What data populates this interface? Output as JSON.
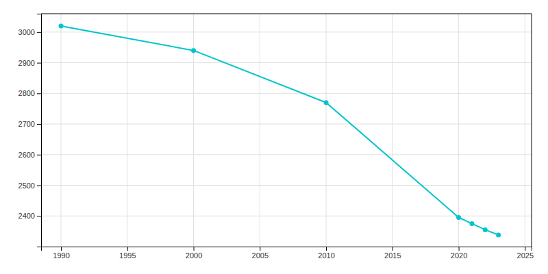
{
  "chart_data": {
    "type": "line",
    "x": [
      1990,
      2000,
      2010,
      2020,
      2021,
      2022,
      2023
    ],
    "values": [
      3020,
      2940,
      2770,
      2395,
      2375,
      2355,
      2338
    ],
    "color": "#00c5cc",
    "marker": "circle",
    "xlim": [
      1988.5,
      2025.5
    ],
    "ylim": [
      2300,
      3060
    ],
    "xticks": [
      1990,
      1995,
      2000,
      2005,
      2010,
      2015,
      2020,
      2025
    ],
    "yticks": [
      2400,
      2500,
      2600,
      2700,
      2800,
      2900,
      3000
    ],
    "grid": true
  }
}
